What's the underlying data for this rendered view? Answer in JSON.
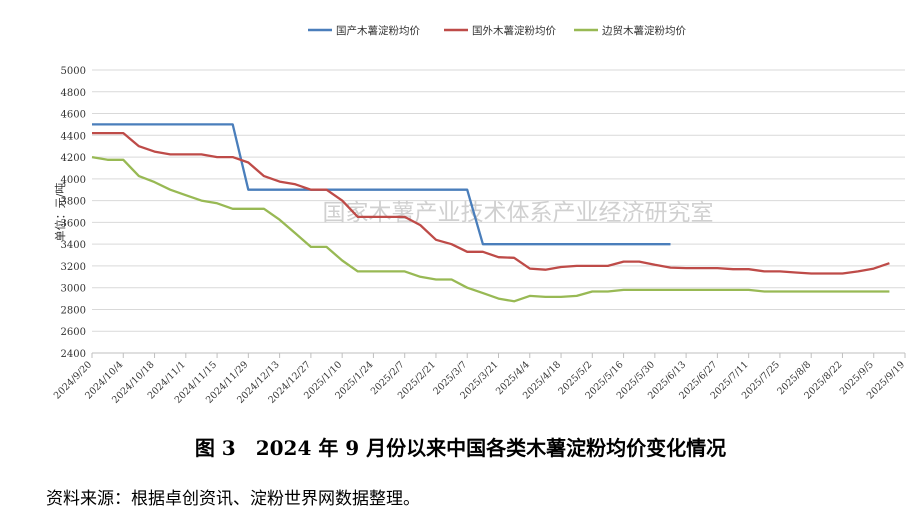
{
  "chart_data": {
    "type": "line",
    "title": "",
    "ylabel": "单位：元/吨",
    "xlabel": "",
    "ylim": [
      2400,
      5000
    ],
    "yticks": [
      2400,
      2600,
      2800,
      3000,
      3200,
      3400,
      3600,
      3800,
      4000,
      4200,
      4400,
      4600,
      4800,
      5000
    ],
    "grid": true,
    "legend_position": "top",
    "xtick_labels": [
      "2024/9/20",
      "2024/10/4",
      "2024/10/18",
      "2024/11/1",
      "2024/11/15",
      "2024/11/29",
      "2024/12/13",
      "2024/12/27",
      "2025/1/10",
      "2025/1/24",
      "2025/2/7",
      "2025/2/21",
      "2025/3/7",
      "2025/3/21",
      "2025/4/4",
      "2025/4/18",
      "2025/5/2",
      "2025/5/16",
      "2025/5/30",
      "2025/6/13",
      "2025/6/27",
      "2025/7/11",
      "2025/7/25",
      "2025/8/8",
      "2025/8/22",
      "2025/9/5",
      "2025/9/19"
    ],
    "x": [
      "2024/9/20",
      "2024/9/27",
      "2024/10/4",
      "2024/10/11",
      "2024/10/18",
      "2024/10/25",
      "2024/11/1",
      "2024/11/8",
      "2024/11/15",
      "2024/11/22",
      "2024/11/29",
      "2024/12/6",
      "2024/12/13",
      "2024/12/20",
      "2024/12/27",
      "2025/1/3",
      "2025/1/10",
      "2025/1/17",
      "2025/1/24",
      "2025/1/31",
      "2025/2/7",
      "2025/2/14",
      "2025/2/21",
      "2025/2/28",
      "2025/3/7",
      "2025/3/14",
      "2025/3/21",
      "2025/3/28",
      "2025/4/4",
      "2025/4/11",
      "2025/4/18",
      "2025/4/25",
      "2025/5/2",
      "2025/5/9",
      "2025/5/16",
      "2025/5/23",
      "2025/5/30",
      "2025/6/6",
      "2025/6/13",
      "2025/6/20",
      "2025/6/27",
      "2025/7/4",
      "2025/7/11",
      "2025/7/18",
      "2025/7/25",
      "2025/8/1",
      "2025/8/8",
      "2025/8/15",
      "2025/8/22",
      "2025/8/29",
      "2025/9/5",
      "2025/9/12"
    ],
    "series": [
      {
        "name": "国产木薯淀粉均价",
        "color": "#4a7ebb",
        "values": [
          4500,
          4500,
          4500,
          4500,
          4500,
          4500,
          4500,
          4500,
          4500,
          4500,
          3900,
          3900,
          3900,
          3900,
          3900,
          3900,
          3900,
          3900,
          3900,
          3900,
          3900,
          3900,
          3900,
          3900,
          3900,
          3400,
          3400,
          3400,
          3400,
          3400,
          3400,
          3400,
          3400,
          3400,
          3400,
          3400,
          3400,
          3400,
          null,
          null,
          null,
          null,
          null,
          null,
          null,
          null,
          null,
          null,
          null,
          null,
          null,
          null
        ]
      },
      {
        "name": "国外木薯淀粉均价",
        "color": "#be4b48",
        "values": [
          4420,
          4420,
          4420,
          4300,
          4250,
          4225,
          4225,
          4225,
          4200,
          4200,
          4150,
          4025,
          3975,
          3950,
          3900,
          3900,
          3800,
          3650,
          3650,
          3650,
          3650,
          3575,
          3440,
          3400,
          3330,
          3330,
          3280,
          3275,
          3175,
          3165,
          3190,
          3200,
          3200,
          3200,
          3240,
          3240,
          3210,
          3185,
          3180,
          3180,
          3180,
          3170,
          3170,
          3150,
          3150,
          3140,
          3130,
          3130,
          3130,
          3150,
          3175,
          3225
        ]
      },
      {
        "name": "边贸木薯淀粉均价",
        "color": "#98b954",
        "values": [
          4200,
          4175,
          4175,
          4025,
          3970,
          3900,
          3850,
          3800,
          3775,
          3725,
          3725,
          3725,
          3625,
          3500,
          3375,
          3375,
          3250,
          3150,
          3150,
          3150,
          3150,
          3100,
          3075,
          3075,
          3000,
          2950,
          2900,
          2875,
          2925,
          2915,
          2915,
          2925,
          2965,
          2965,
          2980,
          2980,
          2980,
          2980,
          2980,
          2980,
          2980,
          2980,
          2980,
          2965,
          2965,
          2965,
          2965,
          2965,
          2965,
          2965,
          2965,
          2965
        ]
      }
    ],
    "watermark": "国家木薯产业技术体系产业经济研究室"
  },
  "caption": "图 3　2024 年 9 月份以来中国各类木薯淀粉均价变化情况",
  "source": "资料来源：根据卓创资讯、淀粉世界网数据整理。"
}
